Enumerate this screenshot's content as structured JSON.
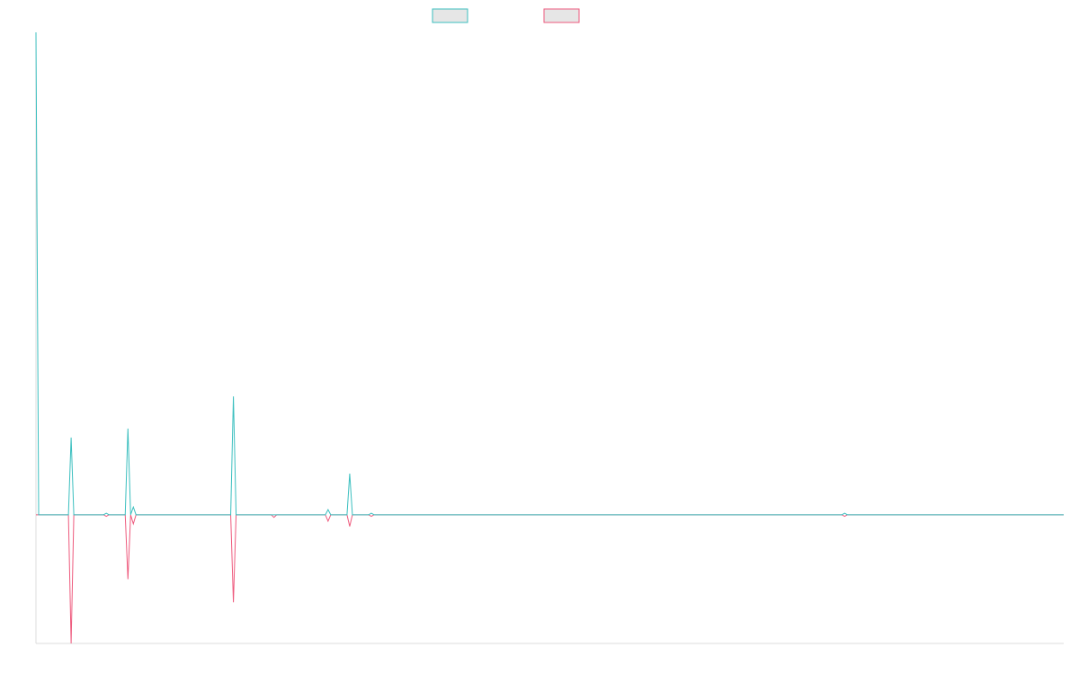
{
  "colors": {
    "series_1": "#3bbfbf",
    "series_2": "#ee5a7d",
    "legend_fill": "#e6e6e6",
    "axis": "#dcdcdc"
  },
  "chart_data": {
    "type": "line",
    "title": "",
    "xlabel": "",
    "ylabel": "",
    "legend_position": "top-center",
    "grid": false,
    "x_range": [
      0,
      380
    ],
    "y_range": [
      -10,
      37.5
    ],
    "series": [
      {
        "points": [
          [
            0,
            37.5
          ],
          [
            1,
            0
          ],
          [
            12,
            0
          ],
          [
            13,
            6
          ],
          [
            14,
            0
          ],
          [
            25,
            0
          ],
          [
            26,
            0.12
          ],
          [
            27,
            0
          ],
          [
            33,
            0
          ],
          [
            34,
            6.7
          ],
          [
            35,
            0
          ],
          [
            36,
            0.6
          ],
          [
            37,
            0
          ],
          [
            72,
            0
          ],
          [
            73,
            9.2
          ],
          [
            74,
            0
          ],
          [
            87,
            0
          ],
          [
            88,
            0
          ],
          [
            107,
            0
          ],
          [
            108,
            0.4
          ],
          [
            109,
            0
          ],
          [
            115,
            0
          ],
          [
            116,
            3.2
          ],
          [
            117,
            0
          ],
          [
            123,
            0
          ],
          [
            124,
            0.12
          ],
          [
            125,
            0
          ],
          [
            298,
            0
          ],
          [
            299,
            0.12
          ],
          [
            300,
            0
          ],
          [
            380,
            0
          ]
        ]
      },
      {
        "points": [
          [
            0,
            0
          ],
          [
            12,
            0
          ],
          [
            13,
            -10
          ],
          [
            14,
            0
          ],
          [
            25,
            0
          ],
          [
            26,
            -0.12
          ],
          [
            27,
            0
          ],
          [
            33,
            0
          ],
          [
            34,
            -5
          ],
          [
            35,
            0
          ],
          [
            36,
            -0.7
          ],
          [
            37,
            0
          ],
          [
            72,
            0
          ],
          [
            73,
            -6.8
          ],
          [
            74,
            0
          ],
          [
            87,
            0
          ],
          [
            88,
            -0.2
          ],
          [
            89,
            0
          ],
          [
            107,
            0
          ],
          [
            108,
            -0.5
          ],
          [
            109,
            0
          ],
          [
            115,
            0
          ],
          [
            116,
            -0.9
          ],
          [
            117,
            0
          ],
          [
            123,
            0
          ],
          [
            124,
            -0.12
          ],
          [
            125,
            0
          ],
          [
            298,
            0
          ],
          [
            299,
            -0.12
          ],
          [
            300,
            0
          ],
          [
            380,
            0
          ]
        ]
      }
    ]
  }
}
